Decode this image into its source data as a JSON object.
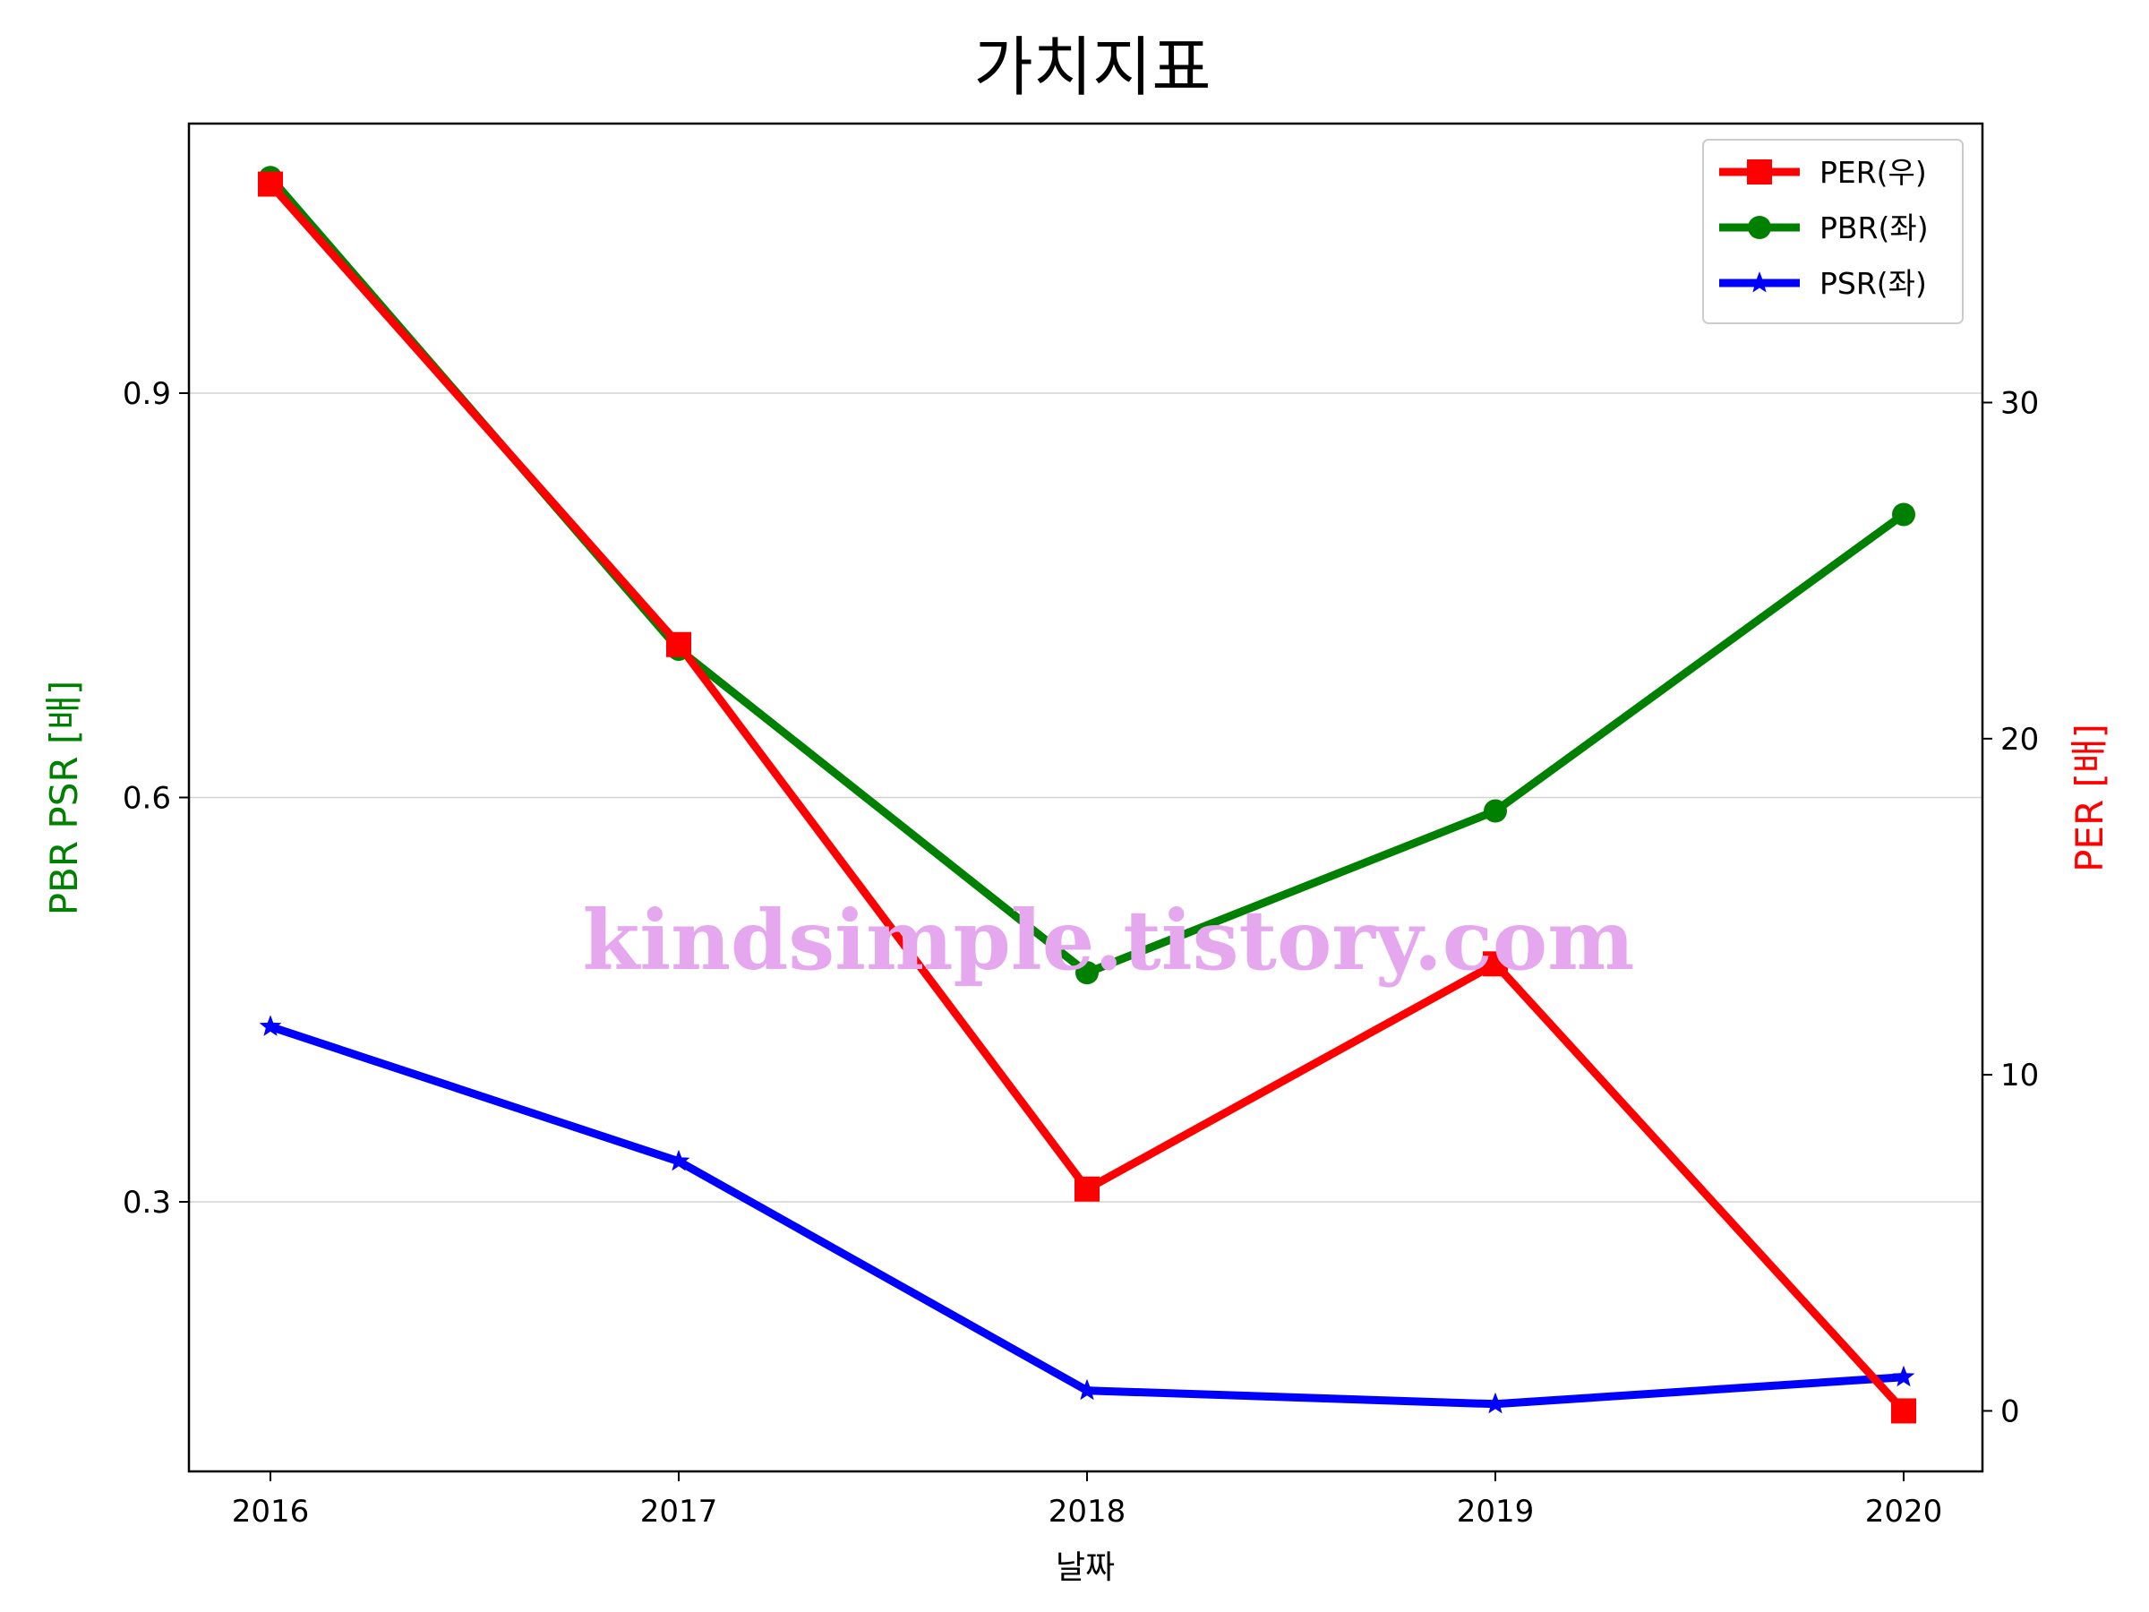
{
  "chart_data": {
    "type": "line",
    "title": "가치지표",
    "xlabel": "날짜",
    "ylabel_left": "PBR PSR [배]",
    "ylabel_right": "PER [배]",
    "categories": [
      "2016",
      "2017",
      "2018",
      "2019",
      "2020"
    ],
    "left_axis": {
      "range": [
        0.1,
        1.1
      ],
      "ticks": [
        0.3,
        0.6,
        0.9
      ],
      "tick_labels": [
        "0.3",
        "0.6",
        "0.9"
      ],
      "label_color": "#008000"
    },
    "right_axis": {
      "range": [
        -1.8,
        38.3
      ],
      "ticks": [
        0,
        10,
        20,
        30
      ],
      "tick_labels": [
        "0",
        "10",
        "20",
        "30"
      ],
      "label_color": "#ff0000"
    },
    "grid": "horizontal, left axis",
    "legend_position": "top-right",
    "series": [
      {
        "name": "PER(우)",
        "axis": "right",
        "color": "#ff0000",
        "marker": "square",
        "values": [
          36.5,
          22.8,
          6.6,
          13.3,
          0.0
        ]
      },
      {
        "name": "PBR(좌)",
        "axis": "left",
        "color": "#008000",
        "marker": "circle",
        "values": [
          1.06,
          0.71,
          0.47,
          0.59,
          0.81
        ]
      },
      {
        "name": "PSR(좌)",
        "axis": "left",
        "color": "#0000ff",
        "marker": "star",
        "values": [
          0.43,
          0.33,
          0.16,
          0.15,
          0.17
        ]
      }
    ],
    "annotations": [
      "kindsimple.tistory.com"
    ]
  }
}
